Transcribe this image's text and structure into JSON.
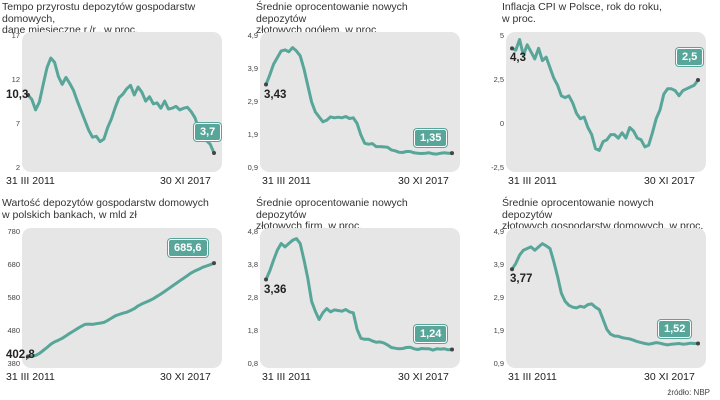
{
  "chart_data": [
    {
      "type": "line",
      "title": "Tempo przyrostu depozytów gospodarstw domowych,\ndane miesięczne r./r., w proc.",
      "x_start_label": "31 III 2011",
      "x_end_label": "30 XI 2017",
      "yticks": [
        "17",
        "12",
        "7",
        "2"
      ],
      "ylim": [
        2,
        17
      ],
      "start_label": "10,3",
      "end_label": "3,7",
      "values": [
        10.3,
        9.8,
        8.6,
        9.5,
        11.5,
        13.4,
        14.5,
        14.0,
        12.4,
        11.5,
        12.3,
        11.6,
        10.8,
        9.6,
        8.5,
        7.4,
        6.3,
        5.5,
        5.6,
        5.0,
        5.3,
        6.6,
        7.6,
        8.9,
        10.0,
        10.4,
        11.0,
        11.4,
        10.3,
        11.2,
        10.6,
        9.6,
        10.1,
        9.3,
        9.4,
        8.8,
        9.6,
        8.7,
        8.8,
        9.0,
        8.6,
        8.8,
        8.9,
        8.4,
        7.7,
        6.4,
        5.3,
        5.1,
        4.7,
        3.7
      ]
    },
    {
      "type": "line",
      "title": "Średnie oprocentowanie nowych depozytów\nzłotowych ogółem, w proc.",
      "x_start_label": "31 III 2011",
      "x_end_label": "30 XI 2017",
      "yticks": [
        "4,9",
        "3,9",
        "2,9",
        "1,9",
        "0,9"
      ],
      "ylim": [
        0.9,
        4.9
      ],
      "start_label": "3,43",
      "end_label": "1,35",
      "values": [
        3.43,
        3.72,
        4.05,
        4.25,
        4.45,
        4.48,
        4.42,
        4.55,
        4.45,
        4.3,
        3.9,
        3.4,
        2.9,
        2.6,
        2.45,
        2.3,
        2.35,
        2.45,
        2.42,
        2.44,
        2.42,
        2.46,
        2.4,
        2.42,
        2.25,
        1.9,
        1.65,
        1.62,
        1.64,
        1.55,
        1.55,
        1.54,
        1.53,
        1.45,
        1.42,
        1.38,
        1.37,
        1.4,
        1.4,
        1.36,
        1.35,
        1.34,
        1.35,
        1.36,
        1.33,
        1.32,
        1.35,
        1.36,
        1.35,
        1.35
      ]
    },
    {
      "type": "line",
      "title": "Inflacja CPI w Polsce, rok do roku,\nw proc.",
      "x_start_label": "31 III 2011",
      "x_end_label": "30 XI 2017",
      "yticks": [
        "5",
        "2,5",
        "0",
        "-2,5"
      ],
      "ylim": [
        -2.5,
        5
      ],
      "start_label": "4,3",
      "end_label": "2,5",
      "values": [
        4.3,
        4.2,
        4.8,
        3.9,
        4.5,
        4.1,
        3.7,
        4.3,
        3.6,
        3.8,
        3.2,
        2.6,
        2.2,
        1.6,
        1.5,
        1.6,
        1.2,
        0.6,
        0.3,
        0.4,
        -0.2,
        -0.6,
        -1.4,
        -1.5,
        -1.0,
        -0.9,
        -0.6,
        -0.6,
        -0.8,
        -0.5,
        -0.8,
        -0.2,
        -0.4,
        -0.8,
        -0.9,
        -1.3,
        -1.2,
        -0.5,
        0.3,
        0.8,
        1.7,
        2.0,
        2.0,
        1.9,
        1.6,
        1.9,
        2.0,
        2.1,
        2.2,
        2.5
      ]
    },
    {
      "type": "line",
      "title": "Wartość depozytów gospodarstw domowych\nw polskich bankach, w mld zł",
      "x_start_label": "31 III 2011",
      "x_end_label": "30 XI 2017",
      "yticks": [
        "780",
        "680",
        "580",
        "480",
        "380"
      ],
      "ylim": [
        380,
        780
      ],
      "start_label": "402,8",
      "end_label": "685,6",
      "values": [
        402.8,
        404,
        406,
        412,
        421,
        430,
        440,
        447,
        452,
        458,
        465,
        473,
        480,
        487,
        494,
        500,
        501,
        500,
        502,
        504,
        506,
        512,
        519,
        526,
        530,
        534,
        537,
        542,
        548,
        556,
        562,
        567,
        572,
        578,
        585,
        592,
        600,
        608,
        616,
        624,
        632,
        640,
        648,
        656,
        662,
        667,
        673,
        677,
        681,
        685.6
      ]
    },
    {
      "type": "line",
      "title": "Średnie oprocentowanie nowych depozytów\nzłotowych firm, w proc.",
      "x_start_label": "31 III 2011",
      "x_end_label": "30 XI 2017",
      "yticks": [
        "4,8",
        "3,8",
        "2,8",
        "1,8",
        "0,8"
      ],
      "ylim": [
        0.8,
        4.8
      ],
      "start_label": "3,36",
      "end_label": "1,24",
      "values": [
        3.36,
        3.62,
        3.95,
        4.25,
        4.45,
        4.35,
        4.45,
        4.55,
        4.6,
        4.45,
        3.95,
        3.4,
        2.7,
        2.4,
        2.15,
        2.35,
        2.48,
        2.38,
        2.44,
        2.42,
        2.4,
        2.45,
        2.38,
        2.35,
        1.85,
        1.58,
        1.55,
        1.55,
        1.5,
        1.46,
        1.47,
        1.44,
        1.38,
        1.3,
        1.28,
        1.26,
        1.27,
        1.3,
        1.31,
        1.26,
        1.24,
        1.27,
        1.26,
        1.26,
        1.22,
        1.26,
        1.25,
        1.26,
        1.23,
        1.24
      ]
    },
    {
      "type": "line",
      "title": "Średnie oprocentowanie nowych depozytów\nzłotowych gospodarstw domowych, w proc.",
      "x_start_label": "31 III 2011",
      "x_end_label": "30 XI 2017",
      "yticks": [
        "4,9",
        "3,9",
        "2,9",
        "1,9",
        "0,9"
      ],
      "ylim": [
        0.9,
        4.9
      ],
      "start_label": "3,77",
      "end_label": "1,52",
      "values": [
        3.77,
        3.95,
        4.2,
        4.35,
        4.4,
        4.45,
        4.35,
        4.45,
        4.55,
        4.48,
        4.4,
        4.0,
        3.55,
        3.05,
        2.8,
        2.68,
        2.62,
        2.6,
        2.65,
        2.62,
        2.7,
        2.72,
        2.62,
        2.55,
        2.25,
        1.95,
        1.8,
        1.75,
        1.74,
        1.7,
        1.68,
        1.66,
        1.62,
        1.58,
        1.55,
        1.52,
        1.5,
        1.52,
        1.55,
        1.53,
        1.5,
        1.48,
        1.5,
        1.51,
        1.52,
        1.5,
        1.51,
        1.53,
        1.52,
        1.52
      ]
    }
  ],
  "source": "źródło: NBP"
}
